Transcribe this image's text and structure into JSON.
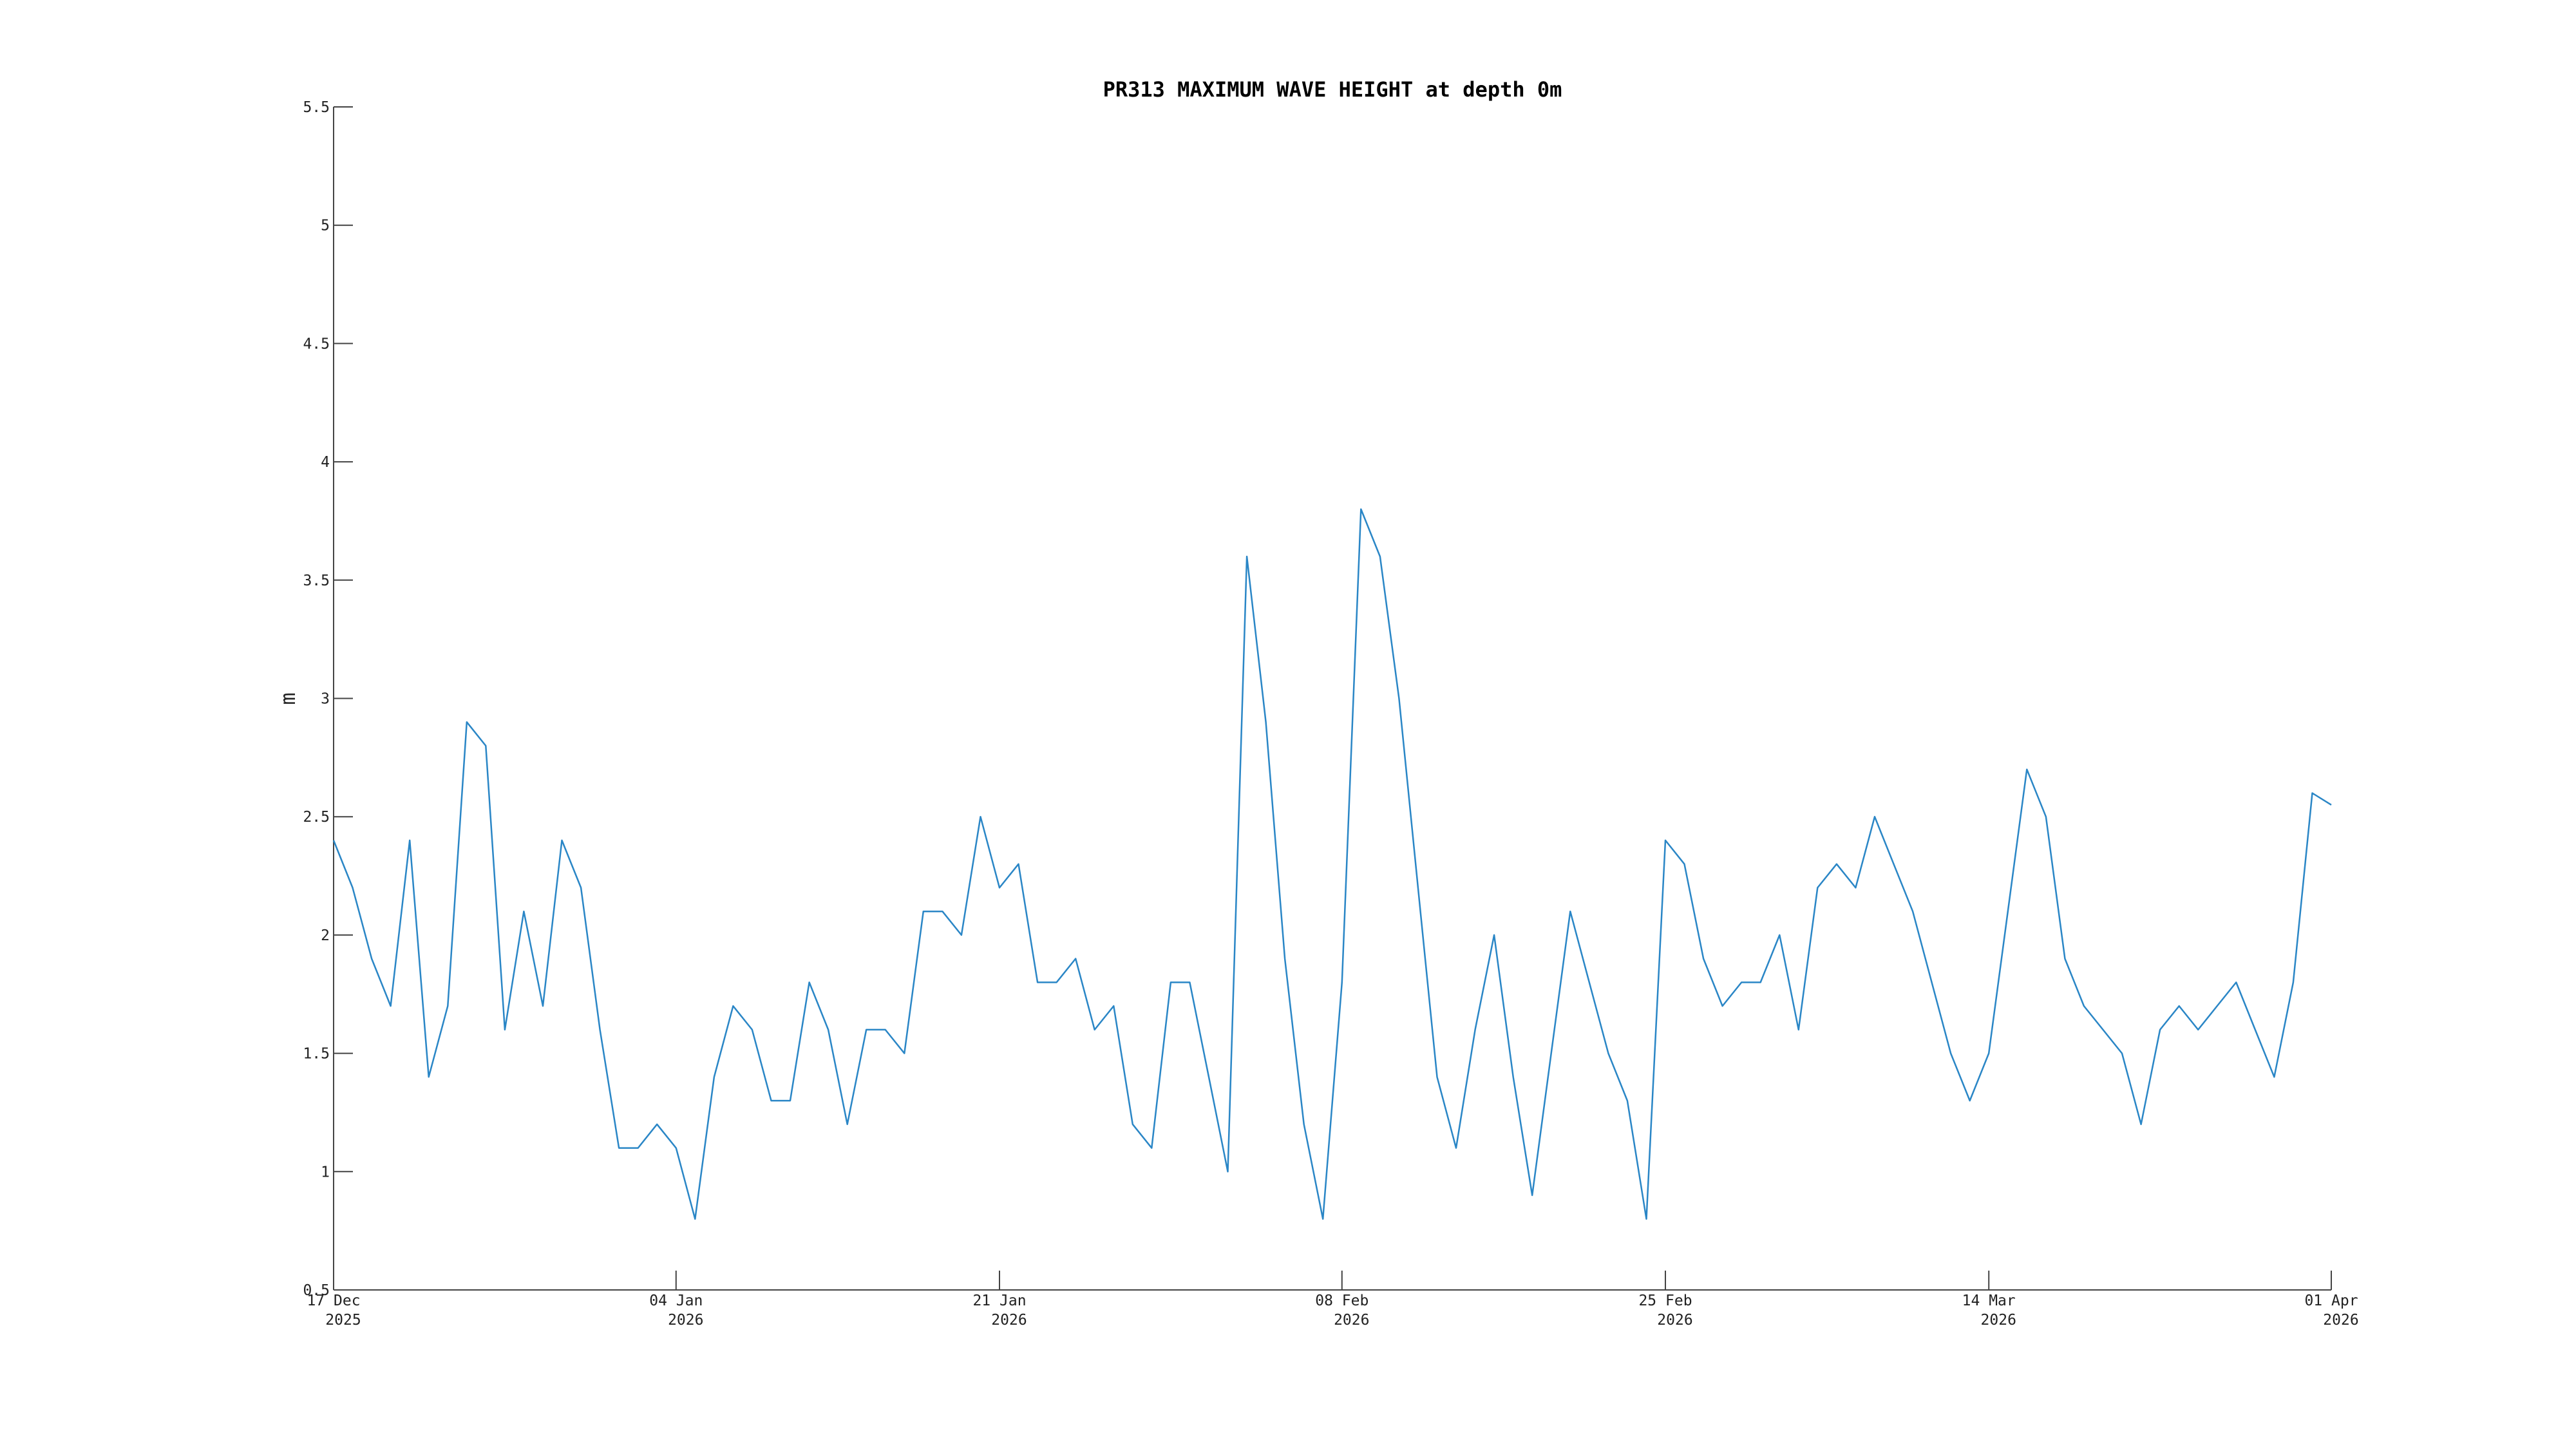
{
  "chart_data": {
    "type": "line",
    "title": "PR313 MAXIMUM WAVE HEIGHT at depth 0m",
    "ylabel": "m",
    "color": "#2a86c6",
    "x": [
      "2025-12-17",
      "2025-12-18",
      "2025-12-19",
      "2025-12-20",
      "2025-12-21",
      "2025-12-22",
      "2025-12-23",
      "2025-12-24",
      "2025-12-25",
      "2025-12-26",
      "2025-12-27",
      "2025-12-28",
      "2025-12-29",
      "2025-12-30",
      "2025-12-31",
      "2026-01-01",
      "2026-01-02",
      "2026-01-03",
      "2026-01-04",
      "2026-01-05",
      "2026-01-06",
      "2026-01-07",
      "2026-01-08",
      "2026-01-09",
      "2026-01-10",
      "2026-01-11",
      "2026-01-12",
      "2026-01-13",
      "2026-01-14",
      "2026-01-15",
      "2026-01-16",
      "2026-01-17",
      "2026-01-18",
      "2026-01-19",
      "2026-01-20",
      "2026-01-21",
      "2026-01-22",
      "2026-01-23",
      "2026-01-24",
      "2026-01-25",
      "2026-01-26",
      "2026-01-27",
      "2026-01-28",
      "2026-01-29",
      "2026-01-30",
      "2026-01-31",
      "2026-02-01",
      "2026-02-02",
      "2026-02-03",
      "2026-02-04",
      "2026-02-05",
      "2026-02-06",
      "2026-02-07",
      "2026-02-08",
      "2026-02-09",
      "2026-02-10",
      "2026-02-11",
      "2026-02-12",
      "2026-02-13",
      "2026-02-14",
      "2026-02-15",
      "2026-02-16",
      "2026-02-17",
      "2026-02-18",
      "2026-02-19",
      "2026-02-20",
      "2026-02-21",
      "2026-02-22",
      "2026-02-23",
      "2026-02-24",
      "2026-02-25",
      "2026-02-26",
      "2026-02-27",
      "2026-02-28",
      "2026-03-01",
      "2026-03-02",
      "2026-03-03",
      "2026-03-04",
      "2026-03-05",
      "2026-03-06",
      "2026-03-07",
      "2026-03-08",
      "2026-03-09",
      "2026-03-10",
      "2026-03-11",
      "2026-03-12",
      "2026-03-13",
      "2026-03-14",
      "2026-03-15",
      "2026-03-16",
      "2026-03-17",
      "2026-03-18",
      "2026-03-19",
      "2026-03-20",
      "2026-03-21",
      "2026-03-22",
      "2026-03-23",
      "2026-03-24",
      "2026-03-25",
      "2026-03-26",
      "2026-03-27",
      "2026-03-28",
      "2026-03-29",
      "2026-03-30",
      "2026-03-31",
      "2026-04-01"
    ],
    "values": [
      2.4,
      2.2,
      1.9,
      1.7,
      2.4,
      1.4,
      1.7,
      2.9,
      2.8,
      1.6,
      2.1,
      1.7,
      2.4,
      2.2,
      1.6,
      1.1,
      1.1,
      1.2,
      1.1,
      0.8,
      1.4,
      1.7,
      1.6,
      1.3,
      1.3,
      1.8,
      1.6,
      1.2,
      1.6,
      1.6,
      1.5,
      2.1,
      2.1,
      2.0,
      2.5,
      2.2,
      2.3,
      1.8,
      1.8,
      1.9,
      1.6,
      1.7,
      1.2,
      1.1,
      1.8,
      1.8,
      1.4,
      1.0,
      3.6,
      2.9,
      1.9,
      1.2,
      0.8,
      1.8,
      3.8,
      3.6,
      3.0,
      2.2,
      1.4,
      1.1,
      1.6,
      2.0,
      1.4,
      0.9,
      1.5,
      2.1,
      1.8,
      1.5,
      1.3,
      0.8,
      2.4,
      2.3,
      1.9,
      1.7,
      1.8,
      1.8,
      2.0,
      1.6,
      2.2,
      2.3,
      2.2,
      2.5,
      2.3,
      2.1,
      1.8,
      1.5,
      1.3,
      1.5,
      2.1,
      2.7,
      2.5,
      1.9,
      1.7,
      1.6,
      1.5,
      1.2,
      1.6,
      1.7,
      1.6,
      1.7,
      1.8,
      1.6,
      1.4,
      1.8,
      2.6,
      2.55
    ],
    "xlim": [
      "2025-12-17",
      "2026-04-01"
    ],
    "xticks": [
      {
        "value": "2025-12-17",
        "label": [
          "17 Dec",
          "2025"
        ]
      },
      {
        "value": "2026-01-04",
        "label": [
          "04 Jan",
          "2026"
        ]
      },
      {
        "value": "2026-01-21",
        "label": [
          "21 Jan",
          "2026"
        ]
      },
      {
        "value": "2026-02-08",
        "label": [
          "08 Feb",
          "2026"
        ]
      },
      {
        "value": "2026-02-25",
        "label": [
          "25 Feb",
          "2026"
        ]
      },
      {
        "value": "2026-03-14",
        "label": [
          "14 Mar",
          "2026"
        ]
      },
      {
        "value": "2026-04-01",
        "label": [
          "01 Apr",
          "2026"
        ]
      }
    ],
    "ylim": [
      0.5,
      5.5
    ],
    "yticks": [
      0.5,
      1,
      1.5,
      2,
      2.5,
      3,
      3.5,
      4,
      4.5,
      5,
      5.5
    ],
    "grid": false
  }
}
